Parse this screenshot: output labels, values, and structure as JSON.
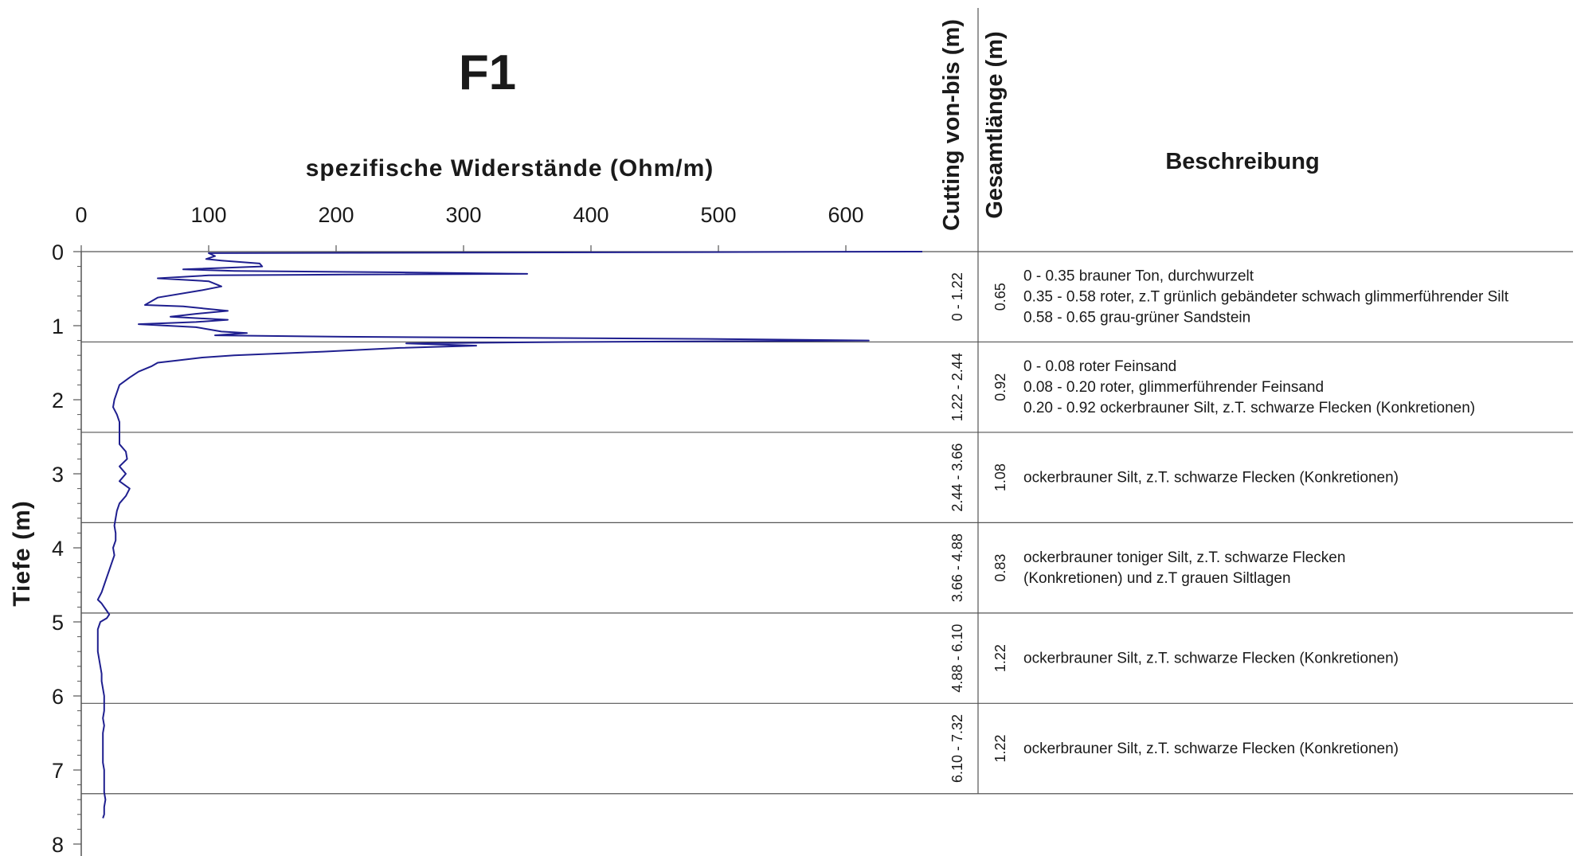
{
  "chart_data": {
    "type": "line",
    "title": "F1",
    "xlabel": "spezifische Widerstände (Ohm/m)",
    "ylabel": "Tiefe (m)",
    "xlim": [
      0,
      660
    ],
    "ylim": [
      0,
      8
    ],
    "y_inverted": true,
    "x_ticks": [
      0,
      100,
      200,
      300,
      400,
      500,
      600
    ],
    "y_ticks": [
      0,
      1,
      2,
      3,
      4,
      5,
      6,
      7,
      8
    ],
    "series": [
      {
        "points": [
          [
            660,
            0.0
          ],
          [
            100,
            0.02
          ],
          [
            105,
            0.06
          ],
          [
            98,
            0.1
          ],
          [
            110,
            0.12
          ],
          [
            140,
            0.16
          ],
          [
            142,
            0.2
          ],
          [
            80,
            0.24
          ],
          [
            120,
            0.26
          ],
          [
            250,
            0.28
          ],
          [
            350,
            0.3
          ],
          [
            210,
            0.31
          ],
          [
            100,
            0.32
          ],
          [
            60,
            0.36
          ],
          [
            100,
            0.4
          ],
          [
            110,
            0.47
          ],
          [
            95,
            0.52
          ],
          [
            60,
            0.62
          ],
          [
            50,
            0.72
          ],
          [
            80,
            0.74
          ],
          [
            115,
            0.8
          ],
          [
            90,
            0.84
          ],
          [
            70,
            0.88
          ],
          [
            115,
            0.92
          ],
          [
            90,
            0.95
          ],
          [
            45,
            0.98
          ],
          [
            90,
            1.02
          ],
          [
            100,
            1.05
          ],
          [
            110,
            1.08
          ],
          [
            130,
            1.1
          ],
          [
            105,
            1.13
          ],
          [
            205,
            1.15
          ],
          [
            500,
            1.18
          ],
          [
            618,
            1.2
          ],
          [
            380,
            1.22
          ],
          [
            255,
            1.24
          ],
          [
            310,
            1.27
          ],
          [
            250,
            1.3
          ],
          [
            190,
            1.35
          ],
          [
            120,
            1.4
          ],
          [
            95,
            1.43
          ],
          [
            75,
            1.47
          ],
          [
            60,
            1.5
          ],
          [
            55,
            1.55
          ],
          [
            45,
            1.62
          ],
          [
            38,
            1.7
          ],
          [
            30,
            1.8
          ],
          [
            28,
            1.9
          ],
          [
            26,
            2.0
          ],
          [
            25,
            2.1
          ],
          [
            28,
            2.2
          ],
          [
            30,
            2.3
          ],
          [
            30,
            2.4
          ],
          [
            30,
            2.5
          ],
          [
            30,
            2.6
          ],
          [
            35,
            2.7
          ],
          [
            36,
            2.8
          ],
          [
            30,
            2.9
          ],
          [
            35,
            3.0
          ],
          [
            30,
            3.1
          ],
          [
            38,
            3.2
          ],
          [
            35,
            3.3
          ],
          [
            30,
            3.4
          ],
          [
            28,
            3.5
          ],
          [
            27,
            3.6
          ],
          [
            26,
            3.7
          ],
          [
            27,
            3.8
          ],
          [
            27,
            3.9
          ],
          [
            25,
            4.0
          ],
          [
            26,
            4.1
          ],
          [
            24,
            4.2
          ],
          [
            22,
            4.3
          ],
          [
            20,
            4.4
          ],
          [
            18,
            4.5
          ],
          [
            16,
            4.6
          ],
          [
            13,
            4.7
          ],
          [
            16,
            4.75
          ],
          [
            18,
            4.8
          ],
          [
            20,
            4.85
          ],
          [
            22,
            4.9
          ],
          [
            20,
            4.95
          ],
          [
            15,
            5.0
          ],
          [
            13,
            5.1
          ],
          [
            13,
            5.2
          ],
          [
            13,
            5.3
          ],
          [
            13,
            5.4
          ],
          [
            14,
            5.5
          ],
          [
            15,
            5.6
          ],
          [
            16,
            5.7
          ],
          [
            16,
            5.8
          ],
          [
            17,
            5.9
          ],
          [
            18,
            6.0
          ],
          [
            18,
            6.1
          ],
          [
            18,
            6.2
          ],
          [
            17,
            6.3
          ],
          [
            18,
            6.4
          ],
          [
            17,
            6.5
          ],
          [
            17,
            6.6
          ],
          [
            17,
            6.7
          ],
          [
            17,
            6.8
          ],
          [
            17,
            6.9
          ],
          [
            18,
            7.0
          ],
          [
            18,
            7.1
          ],
          [
            18,
            7.2
          ],
          [
            18,
            7.3
          ],
          [
            19,
            7.4
          ],
          [
            18,
            7.5
          ],
          [
            18,
            7.6
          ],
          [
            17,
            7.65
          ]
        ]
      }
    ],
    "table": {
      "col_cutting_title": "Cutting von-bis (m)",
      "col_length_title": "Gesamtlänge (m)",
      "col_desc_title": "Beschreibung",
      "boundaries": [
        0.0,
        1.22,
        2.44,
        3.66,
        4.88,
        6.1,
        7.32
      ],
      "rows": [
        {
          "cutting": "0 - 1.22",
          "length": "0.65",
          "desc": [
            "0 - 0.35 brauner Ton, durchwurzelt",
            "0.35 - 0.58 roter, z.T grünlich gebändeter schwach glimmerführender Silt",
            "0.58 - 0.65 grau-grüner Sandstein"
          ]
        },
        {
          "cutting": "1.22 - 2.44",
          "length": "0.92",
          "desc": [
            "0 - 0.08 roter Feinsand",
            "0.08 - 0.20 roter, glimmerführender Feinsand",
            "0.20 - 0.92 ockerbrauner Silt, z.T. schwarze Flecken (Konkretionen)"
          ]
        },
        {
          "cutting": "2.44 - 3.66",
          "length": "1.08",
          "desc": [
            "ockerbrauner Silt, z.T. schwarze Flecken (Konkretionen)"
          ]
        },
        {
          "cutting": "3.66 - 4.88",
          "length": "0.83",
          "desc": [
            "ockerbrauner toniger Silt, z.T. schwarze Flecken",
            "(Konkretionen) und z.T grauen Siltlagen"
          ]
        },
        {
          "cutting": "4.88 - 6.10",
          "length": "1.22",
          "desc": [
            "ockerbrauner Silt, z.T. schwarze Flecken (Konkretionen)"
          ]
        },
        {
          "cutting": "6.10 - 7.32",
          "length": "1.22",
          "desc": [
            "ockerbrauner Silt, z.T. schwarze Flecken (Konkretionen)"
          ]
        }
      ]
    }
  },
  "colors": {
    "curve": "#1f1f8f",
    "lines": "#555555",
    "text": "#1a1a1a"
  }
}
